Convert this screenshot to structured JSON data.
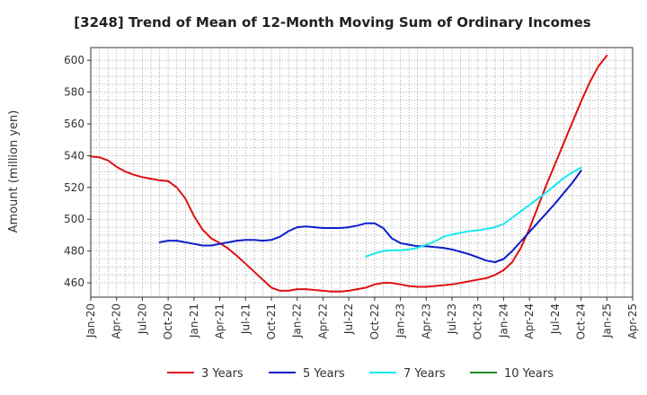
{
  "chart_data": {
    "type": "line",
    "title": "[3248]  Trend of Mean of 12-Month Moving Sum of Ordinary Incomes",
    "xlabel": "",
    "ylabel": "Amount (million yen)",
    "ylim": [
      451,
      608
    ],
    "yticks": [
      460,
      480,
      500,
      520,
      540,
      560,
      580,
      600
    ],
    "xlim": [
      0,
      63
    ],
    "xticks": [
      {
        "x": 0,
        "label": "Jan-20"
      },
      {
        "x": 3,
        "label": "Apr-20"
      },
      {
        "x": 6,
        "label": "Jul-20"
      },
      {
        "x": 9,
        "label": "Oct-20"
      },
      {
        "x": 12,
        "label": "Jan-21"
      },
      {
        "x": 15,
        "label": "Apr-21"
      },
      {
        "x": 18,
        "label": "Jul-21"
      },
      {
        "x": 21,
        "label": "Oct-21"
      },
      {
        "x": 24,
        "label": "Jan-22"
      },
      {
        "x": 27,
        "label": "Apr-22"
      },
      {
        "x": 30,
        "label": "Jul-22"
      },
      {
        "x": 33,
        "label": "Oct-22"
      },
      {
        "x": 36,
        "label": "Jan-23"
      },
      {
        "x": 39,
        "label": "Apr-23"
      },
      {
        "x": 42,
        "label": "Jul-23"
      },
      {
        "x": 45,
        "label": "Oct-23"
      },
      {
        "x": 48,
        "label": "Jan-24"
      },
      {
        "x": 51,
        "label": "Apr-24"
      },
      {
        "x": 54,
        "label": "Jul-24"
      },
      {
        "x": 57,
        "label": "Oct-24"
      },
      {
        "x": 60,
        "label": "Jan-25"
      },
      {
        "x": 63,
        "label": "Apr-25"
      }
    ],
    "grid": true,
    "legend_position": "bottom",
    "series": [
      {
        "name": "3 Years",
        "color": "#e01010",
        "start": 0,
        "values": [
          539.5,
          539,
          537,
          533,
          530,
          528,
          526.5,
          525.5,
          524.5,
          524,
          520,
          513,
          502,
          493.5,
          488,
          485,
          481.5,
          477,
          472,
          467,
          462,
          457,
          455,
          455,
          456,
          456,
          455.5,
          455,
          454.5,
          454.5,
          455,
          456,
          457,
          459,
          460,
          460,
          459,
          458,
          457.5,
          457.5,
          458,
          458.5,
          459,
          460,
          461,
          462,
          463,
          465,
          468,
          473,
          482,
          494,
          508,
          522,
          535,
          548,
          561,
          574,
          586,
          596,
          603
        ]
      },
      {
        "name": "5 Years",
        "color": "#0a1ec8",
        "start": 8,
        "values": [
          485.5,
          486.5,
          486.5,
          485.5,
          484.5,
          483.5,
          483.5,
          484.5,
          485.5,
          486.5,
          487,
          487,
          486.5,
          487,
          489,
          492.5,
          495,
          495.5,
          495,
          494.5,
          494.5,
          494.5,
          495,
          496,
          497.5,
          497.5,
          494.5,
          488,
          485,
          484,
          483,
          483,
          482.5,
          482,
          481,
          479.5,
          478,
          476,
          474,
          473,
          475,
          480,
          486,
          492,
          498,
          504,
          510,
          516.5,
          523,
          530.5
        ]
      },
      {
        "name": "7 Years",
        "color": "#18e8f0",
        "start": 32,
        "values": [
          476.5,
          478.5,
          480,
          480.5,
          480.5,
          481,
          482,
          484,
          486,
          489,
          490.5,
          491.5,
          492.5,
          493,
          494,
          495,
          497,
          501,
          505,
          509,
          513,
          517,
          521.5,
          526,
          529.5,
          532.5
        ]
      },
      {
        "name": "10 Years",
        "color": "#228b22",
        "start": 0,
        "values": []
      }
    ]
  }
}
